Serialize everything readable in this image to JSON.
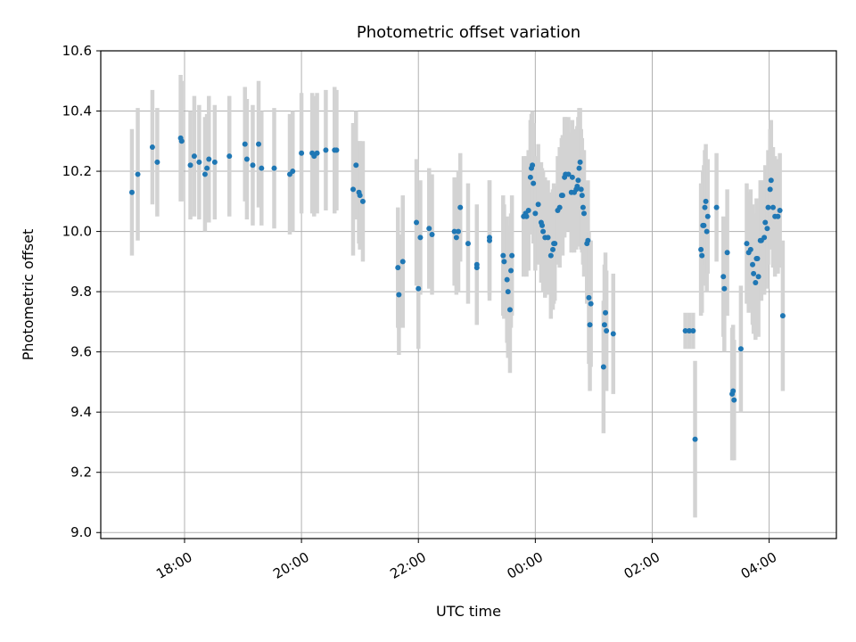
{
  "chart_data": {
    "type": "scatter",
    "title": "Photometric offset variation",
    "xlabel": "UTC time",
    "ylabel": "Photometric offset",
    "x_ticks": [
      "18:00",
      "20:00",
      "22:00",
      "00:00",
      "02:00",
      "04:00"
    ],
    "y_ticks": [
      "9.0",
      "9.2",
      "9.4",
      "9.6",
      "9.8",
      "10.0",
      "10.2",
      "10.4",
      "10.6"
    ],
    "xlim": [
      "16:34",
      "05:09"
    ],
    "ylim": [
      8.98,
      10.6
    ],
    "grid": true,
    "colors": {
      "point": "#1f77b4",
      "errorbar": "#d3d3d3",
      "grid": "#b0b0b0"
    },
    "points": [
      {
        "t": "17:06",
        "y": 10.13,
        "err": 0.21
      },
      {
        "t": "17:12",
        "y": 10.19,
        "err": 0.22
      },
      {
        "t": "17:27",
        "y": 10.28,
        "err": 0.19
      },
      {
        "t": "17:32",
        "y": 10.23,
        "err": 0.18
      },
      {
        "t": "17:56",
        "y": 10.31,
        "err": 0.21
      },
      {
        "t": "17:57",
        "y": 10.3,
        "err": 0.2
      },
      {
        "t": "18:06",
        "y": 10.22,
        "err": 0.18
      },
      {
        "t": "18:10",
        "y": 10.25,
        "err": 0.2
      },
      {
        "t": "18:15",
        "y": 10.23,
        "err": 0.19
      },
      {
        "t": "18:21",
        "y": 10.19,
        "err": 0.19
      },
      {
        "t": "18:23",
        "y": 10.21,
        "err": 0.18
      },
      {
        "t": "18:25",
        "y": 10.24,
        "err": 0.21
      },
      {
        "t": "18:31",
        "y": 10.23,
        "err": 0.19
      },
      {
        "t": "18:46",
        "y": 10.25,
        "err": 0.2
      },
      {
        "t": "19:02",
        "y": 10.29,
        "err": 0.19
      },
      {
        "t": "19:04",
        "y": 10.24,
        "err": 0.2
      },
      {
        "t": "19:10",
        "y": 10.22,
        "err": 0.2
      },
      {
        "t": "19:16",
        "y": 10.29,
        "err": 0.21
      },
      {
        "t": "19:19",
        "y": 10.21,
        "err": 0.19
      },
      {
        "t": "19:32",
        "y": 10.21,
        "err": 0.2
      },
      {
        "t": "19:48",
        "y": 10.19,
        "err": 0.2
      },
      {
        "t": "19:51",
        "y": 10.2,
        "err": 0.2
      },
      {
        "t": "20:00",
        "y": 10.26,
        "err": 0.2
      },
      {
        "t": "20:11",
        "y": 10.26,
        "err": 0.2
      },
      {
        "t": "20:13",
        "y": 10.25,
        "err": 0.2
      },
      {
        "t": "20:16",
        "y": 10.26,
        "err": 0.2
      },
      {
        "t": "20:25",
        "y": 10.27,
        "err": 0.2
      },
      {
        "t": "20:34",
        "y": 10.27,
        "err": 0.21
      },
      {
        "t": "20:36",
        "y": 10.27,
        "err": 0.2
      },
      {
        "t": "20:53",
        "y": 10.14,
        "err": 0.22
      },
      {
        "t": "20:56",
        "y": 10.22,
        "err": 0.18
      },
      {
        "t": "20:59",
        "y": 10.13,
        "err": 0.17
      },
      {
        "t": "21:00",
        "y": 10.12,
        "err": 0.18
      },
      {
        "t": "21:03",
        "y": 10.1,
        "err": 0.2
      },
      {
        "t": "21:39",
        "y": 9.88,
        "err": 0.2
      },
      {
        "t": "21:40",
        "y": 9.79,
        "err": 0.2
      },
      {
        "t": "21:44",
        "y": 9.9,
        "err": 0.22
      },
      {
        "t": "21:58",
        "y": 10.03,
        "err": 0.21
      },
      {
        "t": "22:00",
        "y": 9.81,
        "err": 0.2
      },
      {
        "t": "22:02",
        "y": 9.98,
        "err": 0.19
      },
      {
        "t": "22:11",
        "y": 10.01,
        "err": 0.2
      },
      {
        "t": "22:14",
        "y": 9.99,
        "err": 0.2
      },
      {
        "t": "22:37",
        "y": 10.0,
        "err": 0.18
      },
      {
        "t": "22:39",
        "y": 9.98,
        "err": 0.19
      },
      {
        "t": "22:41",
        "y": 10.0,
        "err": 0.2
      },
      {
        "t": "22:43",
        "y": 10.08,
        "err": 0.18
      },
      {
        "t": "22:51",
        "y": 9.96,
        "err": 0.2
      },
      {
        "t": "23:00",
        "y": 9.89,
        "err": 0.2
      },
      {
        "t": "23:00",
        "y": 9.88,
        "err": 0.19
      },
      {
        "t": "23:13",
        "y": 9.98,
        "err": 0.19
      },
      {
        "t": "23:13",
        "y": 9.97,
        "err": 0.2
      },
      {
        "t": "23:27",
        "y": 9.92,
        "err": 0.2
      },
      {
        "t": "23:28",
        "y": 9.9,
        "err": 0.19
      },
      {
        "t": "23:31",
        "y": 9.84,
        "err": 0.21
      },
      {
        "t": "23:32",
        "y": 9.8,
        "err": 0.22
      },
      {
        "t": "23:34",
        "y": 9.74,
        "err": 0.21
      },
      {
        "t": "23:35",
        "y": 9.87,
        "err": 0.19
      },
      {
        "t": "23:36",
        "y": 9.92,
        "err": 0.2
      },
      {
        "t": "23:48",
        "y": 10.05,
        "err": 0.2
      },
      {
        "t": "23:50",
        "y": 10.06,
        "err": 0.19
      },
      {
        "t": "23:51",
        "y": 10.05,
        "err": 0.2
      },
      {
        "t": "23:53",
        "y": 10.07,
        "err": 0.2
      },
      {
        "t": "23:55",
        "y": 10.18,
        "err": 0.19
      },
      {
        "t": "23:56",
        "y": 10.21,
        "err": 0.18
      },
      {
        "t": "23:57",
        "y": 10.22,
        "err": 0.18
      },
      {
        "t": "23:58",
        "y": 10.16,
        "err": 0.2
      },
      {
        "t": "00:00",
        "y": 10.06,
        "err": 0.19
      },
      {
        "t": "00:03",
        "y": 10.09,
        "err": 0.2
      },
      {
        "t": "00:06",
        "y": 10.03,
        "err": 0.2
      },
      {
        "t": "00:07",
        "y": 10.02,
        "err": 0.19
      },
      {
        "t": "00:08",
        "y": 10.0,
        "err": 0.2
      },
      {
        "t": "00:10",
        "y": 9.98,
        "err": 0.2
      },
      {
        "t": "00:13",
        "y": 9.98,
        "err": 0.19
      },
      {
        "t": "00:16",
        "y": 9.92,
        "err": 0.21
      },
      {
        "t": "00:18",
        "y": 9.94,
        "err": 0.2
      },
      {
        "t": "00:19",
        "y": 9.96,
        "err": 0.2
      },
      {
        "t": "00:20",
        "y": 9.96,
        "err": 0.19
      },
      {
        "t": "00:23",
        "y": 10.07,
        "err": 0.18
      },
      {
        "t": "00:25",
        "y": 10.08,
        "err": 0.2
      },
      {
        "t": "00:27",
        "y": 10.12,
        "err": 0.19
      },
      {
        "t": "00:28",
        "y": 10.12,
        "err": 0.2
      },
      {
        "t": "00:30",
        "y": 10.18,
        "err": 0.2
      },
      {
        "t": "00:31",
        "y": 10.19,
        "err": 0.19
      },
      {
        "t": "00:34",
        "y": 10.19,
        "err": 0.19
      },
      {
        "t": "00:37",
        "y": 10.13,
        "err": 0.2
      },
      {
        "t": "00:38",
        "y": 10.18,
        "err": 0.19
      },
      {
        "t": "00:40",
        "y": 10.13,
        "err": 0.2
      },
      {
        "t": "00:42",
        "y": 10.14,
        "err": 0.2
      },
      {
        "t": "00:43",
        "y": 10.15,
        "err": 0.2
      },
      {
        "t": "00:44",
        "y": 10.17,
        "err": 0.21
      },
      {
        "t": "00:45",
        "y": 10.21,
        "err": 0.2
      },
      {
        "t": "00:46",
        "y": 10.23,
        "err": 0.18
      },
      {
        "t": "00:47",
        "y": 10.14,
        "err": 0.2
      },
      {
        "t": "00:48",
        "y": 10.12,
        "err": 0.19
      },
      {
        "t": "00:49",
        "y": 10.08,
        "err": 0.19
      },
      {
        "t": "00:50",
        "y": 10.06,
        "err": 0.21
      },
      {
        "t": "00:53",
        "y": 9.96,
        "err": 0.2
      },
      {
        "t": "00:54",
        "y": 9.97,
        "err": 0.2
      },
      {
        "t": "00:55",
        "y": 9.78,
        "err": 0.22
      },
      {
        "t": "00:56",
        "y": 9.69,
        "err": 0.22
      },
      {
        "t": "00:57",
        "y": 9.76,
        "err": 0.21
      },
      {
        "t": "01:10",
        "y": 9.55,
        "err": 0.22
      },
      {
        "t": "01:11",
        "y": 9.69,
        "err": 0.2
      },
      {
        "t": "01:12",
        "y": 9.73,
        "err": 0.2
      },
      {
        "t": "01:13",
        "y": 9.67,
        "err": 0.2
      },
      {
        "t": "01:20",
        "y": 9.66,
        "err": 0.2
      },
      {
        "t": "02:34",
        "y": 9.67,
        "err": 0.06
      },
      {
        "t": "02:38",
        "y": 9.67,
        "err": 0.06
      },
      {
        "t": "02:42",
        "y": 9.67,
        "err": 0.06
      },
      {
        "t": "02:44",
        "y": 9.31,
        "err": 0.26
      },
      {
        "t": "02:50",
        "y": 9.94,
        "err": 0.22
      },
      {
        "t": "02:51",
        "y": 9.92,
        "err": 0.19
      },
      {
        "t": "02:52",
        "y": 10.02,
        "err": 0.18
      },
      {
        "t": "02:53",
        "y": 10.02,
        "err": 0.2
      },
      {
        "t": "02:54",
        "y": 10.08,
        "err": 0.19
      },
      {
        "t": "02:55",
        "y": 10.1,
        "err": 0.19
      },
      {
        "t": "02:56",
        "y": 10.0,
        "err": 0.2
      },
      {
        "t": "02:57",
        "y": 10.05,
        "err": 0.19
      },
      {
        "t": "03:06",
        "y": 10.08,
        "err": 0.18
      },
      {
        "t": "03:13",
        "y": 9.85,
        "err": 0.2
      },
      {
        "t": "03:14",
        "y": 9.81,
        "err": 0.21
      },
      {
        "t": "03:17",
        "y": 9.93,
        "err": 0.21
      },
      {
        "t": "03:22",
        "y": 9.46,
        "err": 0.22
      },
      {
        "t": "03:23",
        "y": 9.47,
        "err": 0.22
      },
      {
        "t": "03:24",
        "y": 9.44,
        "err": 0.2
      },
      {
        "t": "03:31",
        "y": 9.61,
        "err": 0.21
      },
      {
        "t": "03:37",
        "y": 9.96,
        "err": 0.2
      },
      {
        "t": "03:39",
        "y": 9.93,
        "err": 0.2
      },
      {
        "t": "03:41",
        "y": 9.94,
        "err": 0.2
      },
      {
        "t": "03:43",
        "y": 9.89,
        "err": 0.2
      },
      {
        "t": "03:44",
        "y": 9.86,
        "err": 0.2
      },
      {
        "t": "03:46",
        "y": 9.83,
        "err": 0.19
      },
      {
        "t": "03:47",
        "y": 9.91,
        "err": 0.2
      },
      {
        "t": "03:48",
        "y": 9.91,
        "err": 0.19
      },
      {
        "t": "03:49",
        "y": 9.85,
        "err": 0.2
      },
      {
        "t": "03:51",
        "y": 9.97,
        "err": 0.2
      },
      {
        "t": "03:52",
        "y": 9.97,
        "err": 0.2
      },
      {
        "t": "03:55",
        "y": 9.98,
        "err": 0.19
      },
      {
        "t": "03:56",
        "y": 10.03,
        "err": 0.19
      },
      {
        "t": "03:58",
        "y": 10.01,
        "err": 0.2
      },
      {
        "t": "03:59",
        "y": 10.08,
        "err": 0.19
      },
      {
        "t": "04:01",
        "y": 10.14,
        "err": 0.2
      },
      {
        "t": "04:02",
        "y": 10.17,
        "err": 0.2
      },
      {
        "t": "04:04",
        "y": 10.08,
        "err": 0.2
      },
      {
        "t": "04:06",
        "y": 10.05,
        "err": 0.2
      },
      {
        "t": "04:09",
        "y": 10.05,
        "err": 0.19
      },
      {
        "t": "04:11",
        "y": 10.07,
        "err": 0.19
      },
      {
        "t": "04:14",
        "y": 9.72,
        "err": 0.25
      }
    ]
  }
}
